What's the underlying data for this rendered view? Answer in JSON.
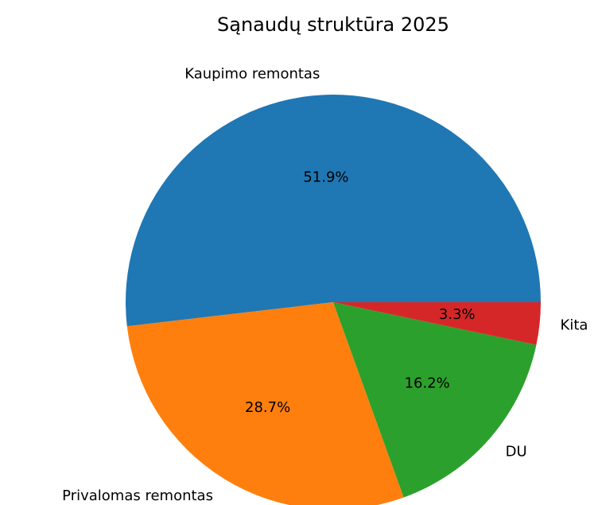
{
  "chart_data": {
    "type": "pie",
    "title": "Sąnaudų struktūra 2025",
    "categories": [
      "Kaupimo remontas",
      "Privalomas remontas",
      "DU",
      "Kita"
    ],
    "values": [
      51.9,
      28.7,
      16.2,
      3.3
    ],
    "value_labels": [
      "51.9%",
      "28.7%",
      "16.2%",
      "3.3%"
    ],
    "colors": [
      "#1f77b4",
      "#ff7f0e",
      "#2ca02c",
      "#d62728"
    ]
  }
}
